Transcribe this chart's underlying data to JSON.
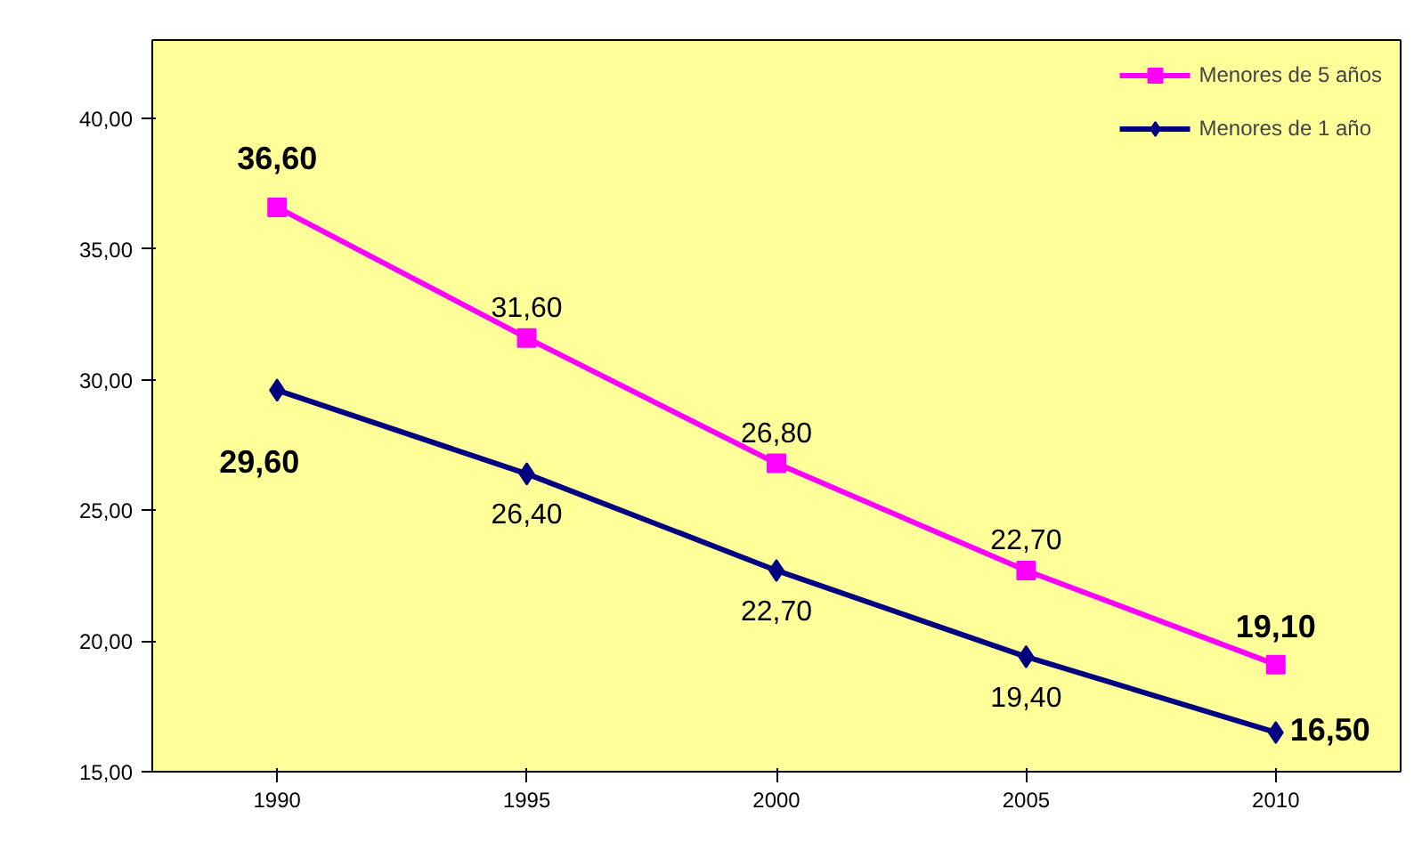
{
  "chart_data": {
    "type": "line",
    "categories": [
      "1990",
      "1995",
      "2000",
      "2005",
      "2010"
    ],
    "series": [
      {
        "name": "Menores de 5 años",
        "color": "#ff00ff",
        "marker": "square",
        "values": [
          36.6,
          31.6,
          26.8,
          22.7,
          19.1
        ],
        "value_labels": [
          "36,60",
          "31,60",
          "26,80",
          "22,70",
          "19,10"
        ]
      },
      {
        "name": "Menores de 1 año",
        "color": "#000080",
        "marker": "diamond",
        "values": [
          29.6,
          26.4,
          22.7,
          19.4,
          16.5
        ],
        "value_labels": [
          "29,60",
          "26,40",
          "22,70",
          "19,40",
          "16,50"
        ]
      }
    ],
    "ylim": [
      15,
      43
    ],
    "yticks": [
      {
        "value": 15,
        "label": "15,00"
      },
      {
        "value": 20,
        "label": "20,00"
      },
      {
        "value": 25,
        "label": "25,00"
      },
      {
        "value": 30,
        "label": "30,00"
      },
      {
        "value": 35,
        "label": "35,00"
      },
      {
        "value": 40,
        "label": "40,00"
      }
    ],
    "grid": false,
    "legend": "top right",
    "line_style": "solid"
  }
}
